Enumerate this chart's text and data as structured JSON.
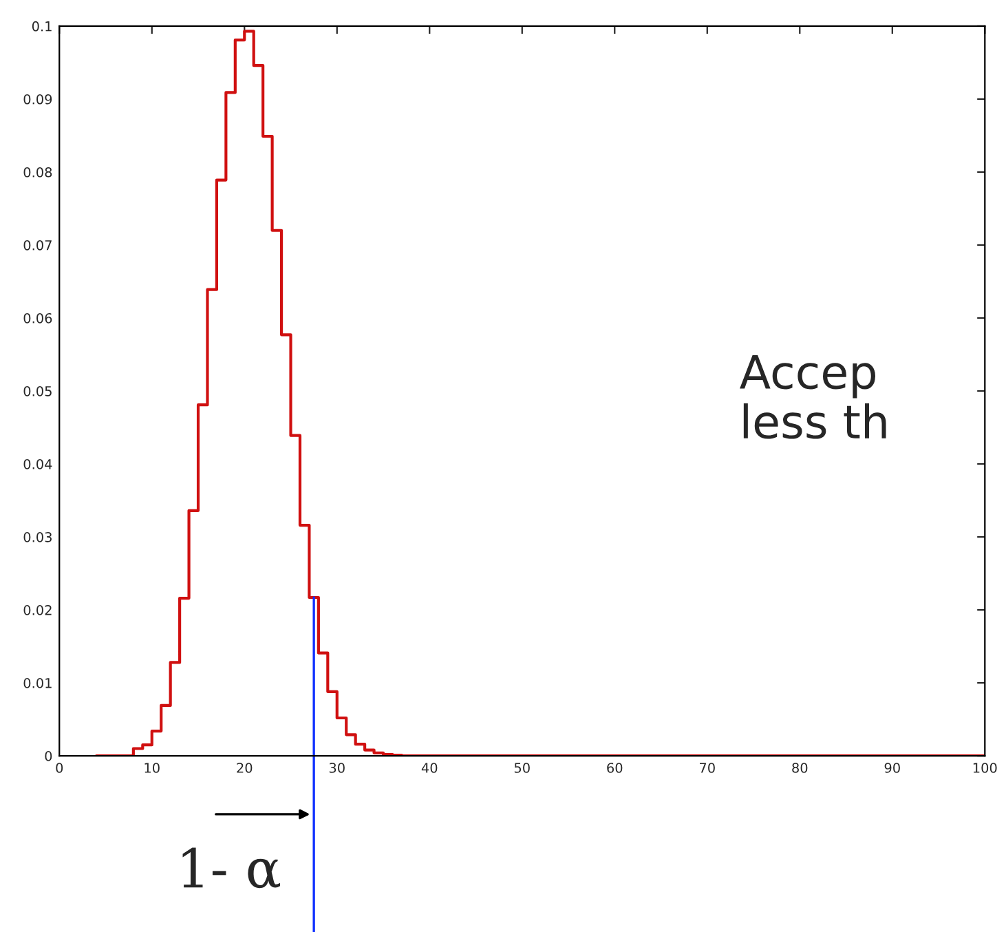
{
  "chart_data": {
    "type": "step",
    "x": [
      4,
      5,
      6,
      7,
      8,
      9,
      10,
      11,
      12,
      13,
      14,
      15,
      16,
      17,
      18,
      19,
      20,
      21,
      22,
      23,
      24,
      25,
      26,
      27,
      28,
      29,
      30,
      31,
      32,
      33,
      34,
      35,
      36,
      37,
      100
    ],
    "series": [
      {
        "color": "#d01010",
        "values": [
          0,
          0,
          0,
          0,
          0.001,
          0.0015,
          0.0034,
          0.0069,
          0.0128,
          0.0216,
          0.0336,
          0.0481,
          0.0639,
          0.0789,
          0.0909,
          0.0981,
          0.0993,
          0.0946,
          0.0849,
          0.072,
          0.0577,
          0.0439,
          0.0316,
          0.0217,
          0.0141,
          0.0088,
          0.0052,
          0.0029,
          0.0016,
          0.0008,
          0.0004,
          0.0002,
          0.0001,
          0,
          0
        ]
      }
    ],
    "xlim": [
      0,
      100
    ],
    "ylim": [
      0,
      0.1
    ],
    "xticks": [
      0,
      10,
      20,
      30,
      40,
      50,
      60,
      70,
      80,
      90,
      100
    ],
    "yticks": [
      0,
      0.01,
      0.02,
      0.03,
      0.04,
      0.05,
      0.06,
      0.07,
      0.08,
      0.09,
      0.1
    ],
    "grid": false,
    "ref_lines": [
      {
        "axis": "x",
        "value": 27.5,
        "color": "#1030ff"
      }
    ],
    "annotations": [
      {
        "text": "1- α",
        "x": 27.5,
        "y": 0
      },
      "Accep\nless th"
    ]
  }
}
